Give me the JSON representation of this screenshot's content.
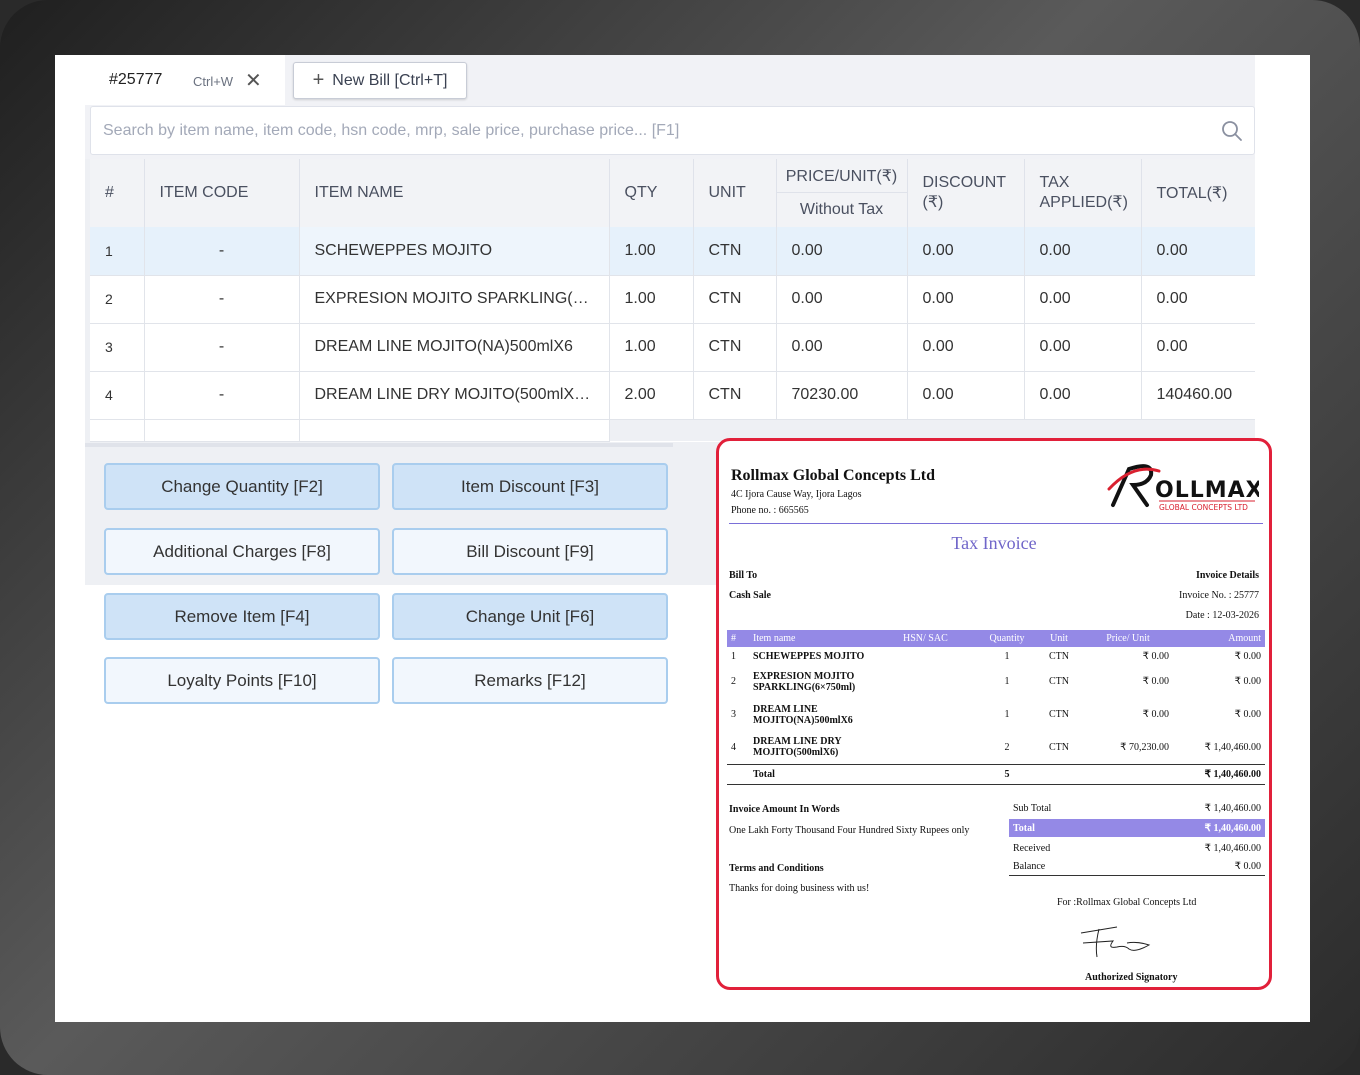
{
  "tabs": {
    "active_id": "#25777",
    "shortcut": "Ctrl+W",
    "new_bill_label": "New Bill [Ctrl+T]"
  },
  "search": {
    "placeholder": "Search by item name, item code, hsn code, mrp, sale price, purchase price... [F1]"
  },
  "table": {
    "headers": {
      "num": "#",
      "item_code": "ITEM CODE",
      "item_name": "ITEM NAME",
      "qty": "QTY",
      "unit": "UNIT",
      "price_top": "PRICE/UNIT(₹)",
      "price_bottom": "Without Tax",
      "discount": "DISCOUNT (₹)",
      "tax": "TAX APPLIED(₹)",
      "total": "TOTAL(₹)"
    },
    "rows": [
      {
        "num": "1",
        "code": "-",
        "name": "SCHEWEPPES MOJITO",
        "qty": "1.00",
        "unit": "CTN",
        "price": "0.00",
        "discount": "0.00",
        "tax": "0.00",
        "total": "0.00"
      },
      {
        "num": "2",
        "code": "-",
        "name": "EXPRESION MOJITO SPARKLING(6…",
        "qty": "1.00",
        "unit": "CTN",
        "price": "0.00",
        "discount": "0.00",
        "tax": "0.00",
        "total": "0.00"
      },
      {
        "num": "3",
        "code": "-",
        "name": "DREAM LINE MOJITO(NA)500mlX6",
        "qty": "1.00",
        "unit": "CTN",
        "price": "0.00",
        "discount": "0.00",
        "tax": "0.00",
        "total": "0.00"
      },
      {
        "num": "4",
        "code": "-",
        "name": "DREAM LINE DRY MOJITO(500mlX…",
        "qty": "2.00",
        "unit": "CTN",
        "price": "70230.00",
        "discount": "0.00",
        "tax": "0.00",
        "total": "140460.00"
      }
    ]
  },
  "actions": {
    "change_quantity": "Change Quantity [F2]",
    "item_discount": "Item Discount [F3]",
    "additional_charges": "Additional Charges [F8]",
    "bill_discount": "Bill Discount [F9]",
    "remove_item": "Remove Item [F4]",
    "change_unit": "Change Unit [F6]",
    "loyalty_points": "Loyalty Points [F10]",
    "remarks": "Remarks [F12]"
  },
  "invoice": {
    "company": "Rollmax Global Concepts Ltd",
    "address": "4C Ijora Cause Way, Ijora Lagos",
    "phone": "Phone no. : 665565",
    "logo_main": "OLLMAX",
    "logo_sub": "GLOBAL CONCEPTS LTD",
    "title": "Tax Invoice",
    "bill_to_label": "Bill To",
    "bill_to_value": "Cash Sale",
    "details_label": "Invoice Details",
    "invoice_no": "Invoice No. : 25777",
    "date": "Date : 12-03-2026",
    "headers": {
      "num": "#",
      "name": "Item name",
      "hsn": "HSN/ SAC",
      "qty": "Quantity",
      "unit": "Unit",
      "price": "Price/ Unit",
      "amount": "Amount"
    },
    "items": [
      {
        "num": "1",
        "name": "SCHEWEPPES MOJITO",
        "qty": "1",
        "unit": "CTN",
        "price": "₹ 0.00",
        "amount": "₹ 0.00"
      },
      {
        "num": "2",
        "name": "EXPRESION MOJITO SPARKLING(6×750ml)",
        "qty": "1",
        "unit": "CTN",
        "price": "₹ 0.00",
        "amount": "₹ 0.00"
      },
      {
        "num": "3",
        "name": "DREAM LINE MOJITO(NA)500mlX6",
        "qty": "1",
        "unit": "CTN",
        "price": "₹ 0.00",
        "amount": "₹ 0.00"
      },
      {
        "num": "4",
        "name": "DREAM LINE DRY MOJITO(500mlX6)",
        "qty": "2",
        "unit": "CTN",
        "price": "₹ 70,230.00",
        "amount": "₹ 1,40,460.00"
      }
    ],
    "total_label": "Total",
    "total_qty": "5",
    "total_amount": "₹ 1,40,460.00",
    "words_label": "Invoice Amount In Words",
    "words_value": "One Lakh Forty Thousand Four Hundred Sixty Rupees only",
    "terms_label": "Terms and Conditions",
    "terms_value": "Thanks for doing business with us!",
    "summary": [
      {
        "label": "Sub Total",
        "value": "₹ 1,40,460.00"
      },
      {
        "label": "Total",
        "value": "₹ 1,40,460.00"
      },
      {
        "label": "Received",
        "value": "₹ 1,40,460.00"
      },
      {
        "label": "Balance",
        "value": "₹ 0.00"
      }
    ],
    "for_company": "For :Rollmax Global Concepts Ltd",
    "signatory": "Authorized Signatory"
  },
  "colors": {
    "accent": "#cfe3f7",
    "selected_row": "#e6f1fb",
    "invoice_border": "#e1203a",
    "invoice_header": "#9489e6"
  }
}
